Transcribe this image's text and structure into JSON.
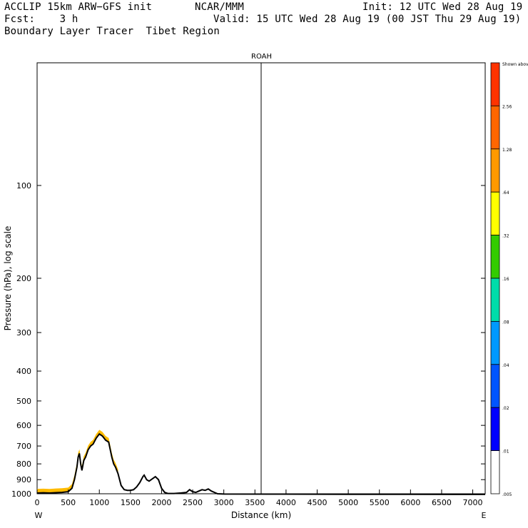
{
  "header": {
    "model": "ACCLIP 15km ARW−GFS init",
    "org": "NCAR/MMM",
    "init": "Init: 12 UTC Wed 28 Aug 19",
    "fcst": "Fcst:    3 h",
    "valid": "Valid: 15 UTC Wed 28 Aug 19 (00 JST Thu 29 Aug 19)",
    "product": "Boundary Layer Tracer  Tibet Region"
  },
  "chart_data": {
    "type": "area",
    "title": "ROAH",
    "xlabel": "Distance (km)",
    "ylabel": "Pressure (hPa), log scale",
    "xlim": [
      0,
      7200
    ],
    "ylim": [
      1000,
      40
    ],
    "y_scale": "log",
    "x_ticks": [
      0,
      500,
      1000,
      1500,
      2000,
      2500,
      3000,
      3500,
      4000,
      4500,
      5000,
      5500,
      6000,
      6500,
      7000
    ],
    "y_ticks": [
      100,
      200,
      300,
      400,
      500,
      600,
      700,
      800,
      900,
      1000
    ],
    "x_end_labels": {
      "left": "W",
      "right": "E"
    },
    "marker_line_x": 3600,
    "terrain": {
      "x": [
        0,
        100,
        200,
        300,
        400,
        500,
        560,
        600,
        640,
        660,
        680,
        700,
        720,
        750,
        780,
        820,
        860,
        900,
        950,
        1000,
        1050,
        1100,
        1150,
        1200,
        1230,
        1260,
        1300,
        1350,
        1400,
        1450,
        1500,
        1550,
        1600,
        1650,
        1700,
        1720,
        1760,
        1800,
        1850,
        1900,
        1950,
        2000,
        2050,
        2100,
        2200,
        2300,
        2400,
        2450,
        2500,
        2550,
        2600,
        2650,
        2700,
        2750,
        2800,
        2850,
        2900,
        3000,
        4000,
        5000,
        6000,
        7200
      ],
      "p": [
        995,
        993,
        995,
        992,
        990,
        985,
        960,
        900,
        820,
        760,
        740,
        800,
        840,
        780,
        760,
        720,
        700,
        690,
        660,
        640,
        650,
        670,
        680,
        760,
        800,
        820,
        860,
        940,
        970,
        975,
        975,
        970,
        950,
        920,
        880,
        870,
        900,
        910,
        895,
        880,
        900,
        960,
        990,
        998,
        998,
        995,
        990,
        970,
        985,
        990,
        980,
        970,
        975,
        965,
        980,
        990,
        1000,
        1002,
        1003,
        1004,
        1004,
        1005
      ]
    },
    "tracer_series": [
      {
        "name": "0.01",
        "offset": 1.0,
        "color": "#0000ff"
      },
      {
        "name": "0.02",
        "offset": 0.97,
        "color": "#0055ff"
      },
      {
        "name": "0.04",
        "offset": 0.945,
        "color": "#00aaff"
      },
      {
        "name": "0.08",
        "offset": 0.925,
        "color": "#00ddaa"
      },
      {
        "name": "0.16",
        "offset": 0.905,
        "color": "#00cc00"
      },
      {
        "name": "0.32",
        "offset": 0.885,
        "color": "#ffff00"
      },
      {
        "name": "0.64",
        "offset": 0.865,
        "color": "#ffbb00"
      }
    ],
    "tracer_extent": [
      0,
      1300
    ],
    "colorbar": {
      "levels": [
        "Shown above",
        "2.56",
        "1.28",
        ".64",
        ".32",
        ".16",
        ".08",
        ".04",
        ".02",
        ".01",
        ".005"
      ],
      "colors": [
        "#ff3300",
        "#ff6600",
        "#ff9900",
        "#ffff00",
        "#33cc00",
        "#00ddaa",
        "#0099ff",
        "#0055ff",
        "#0000ff",
        "#ffffff"
      ]
    }
  }
}
